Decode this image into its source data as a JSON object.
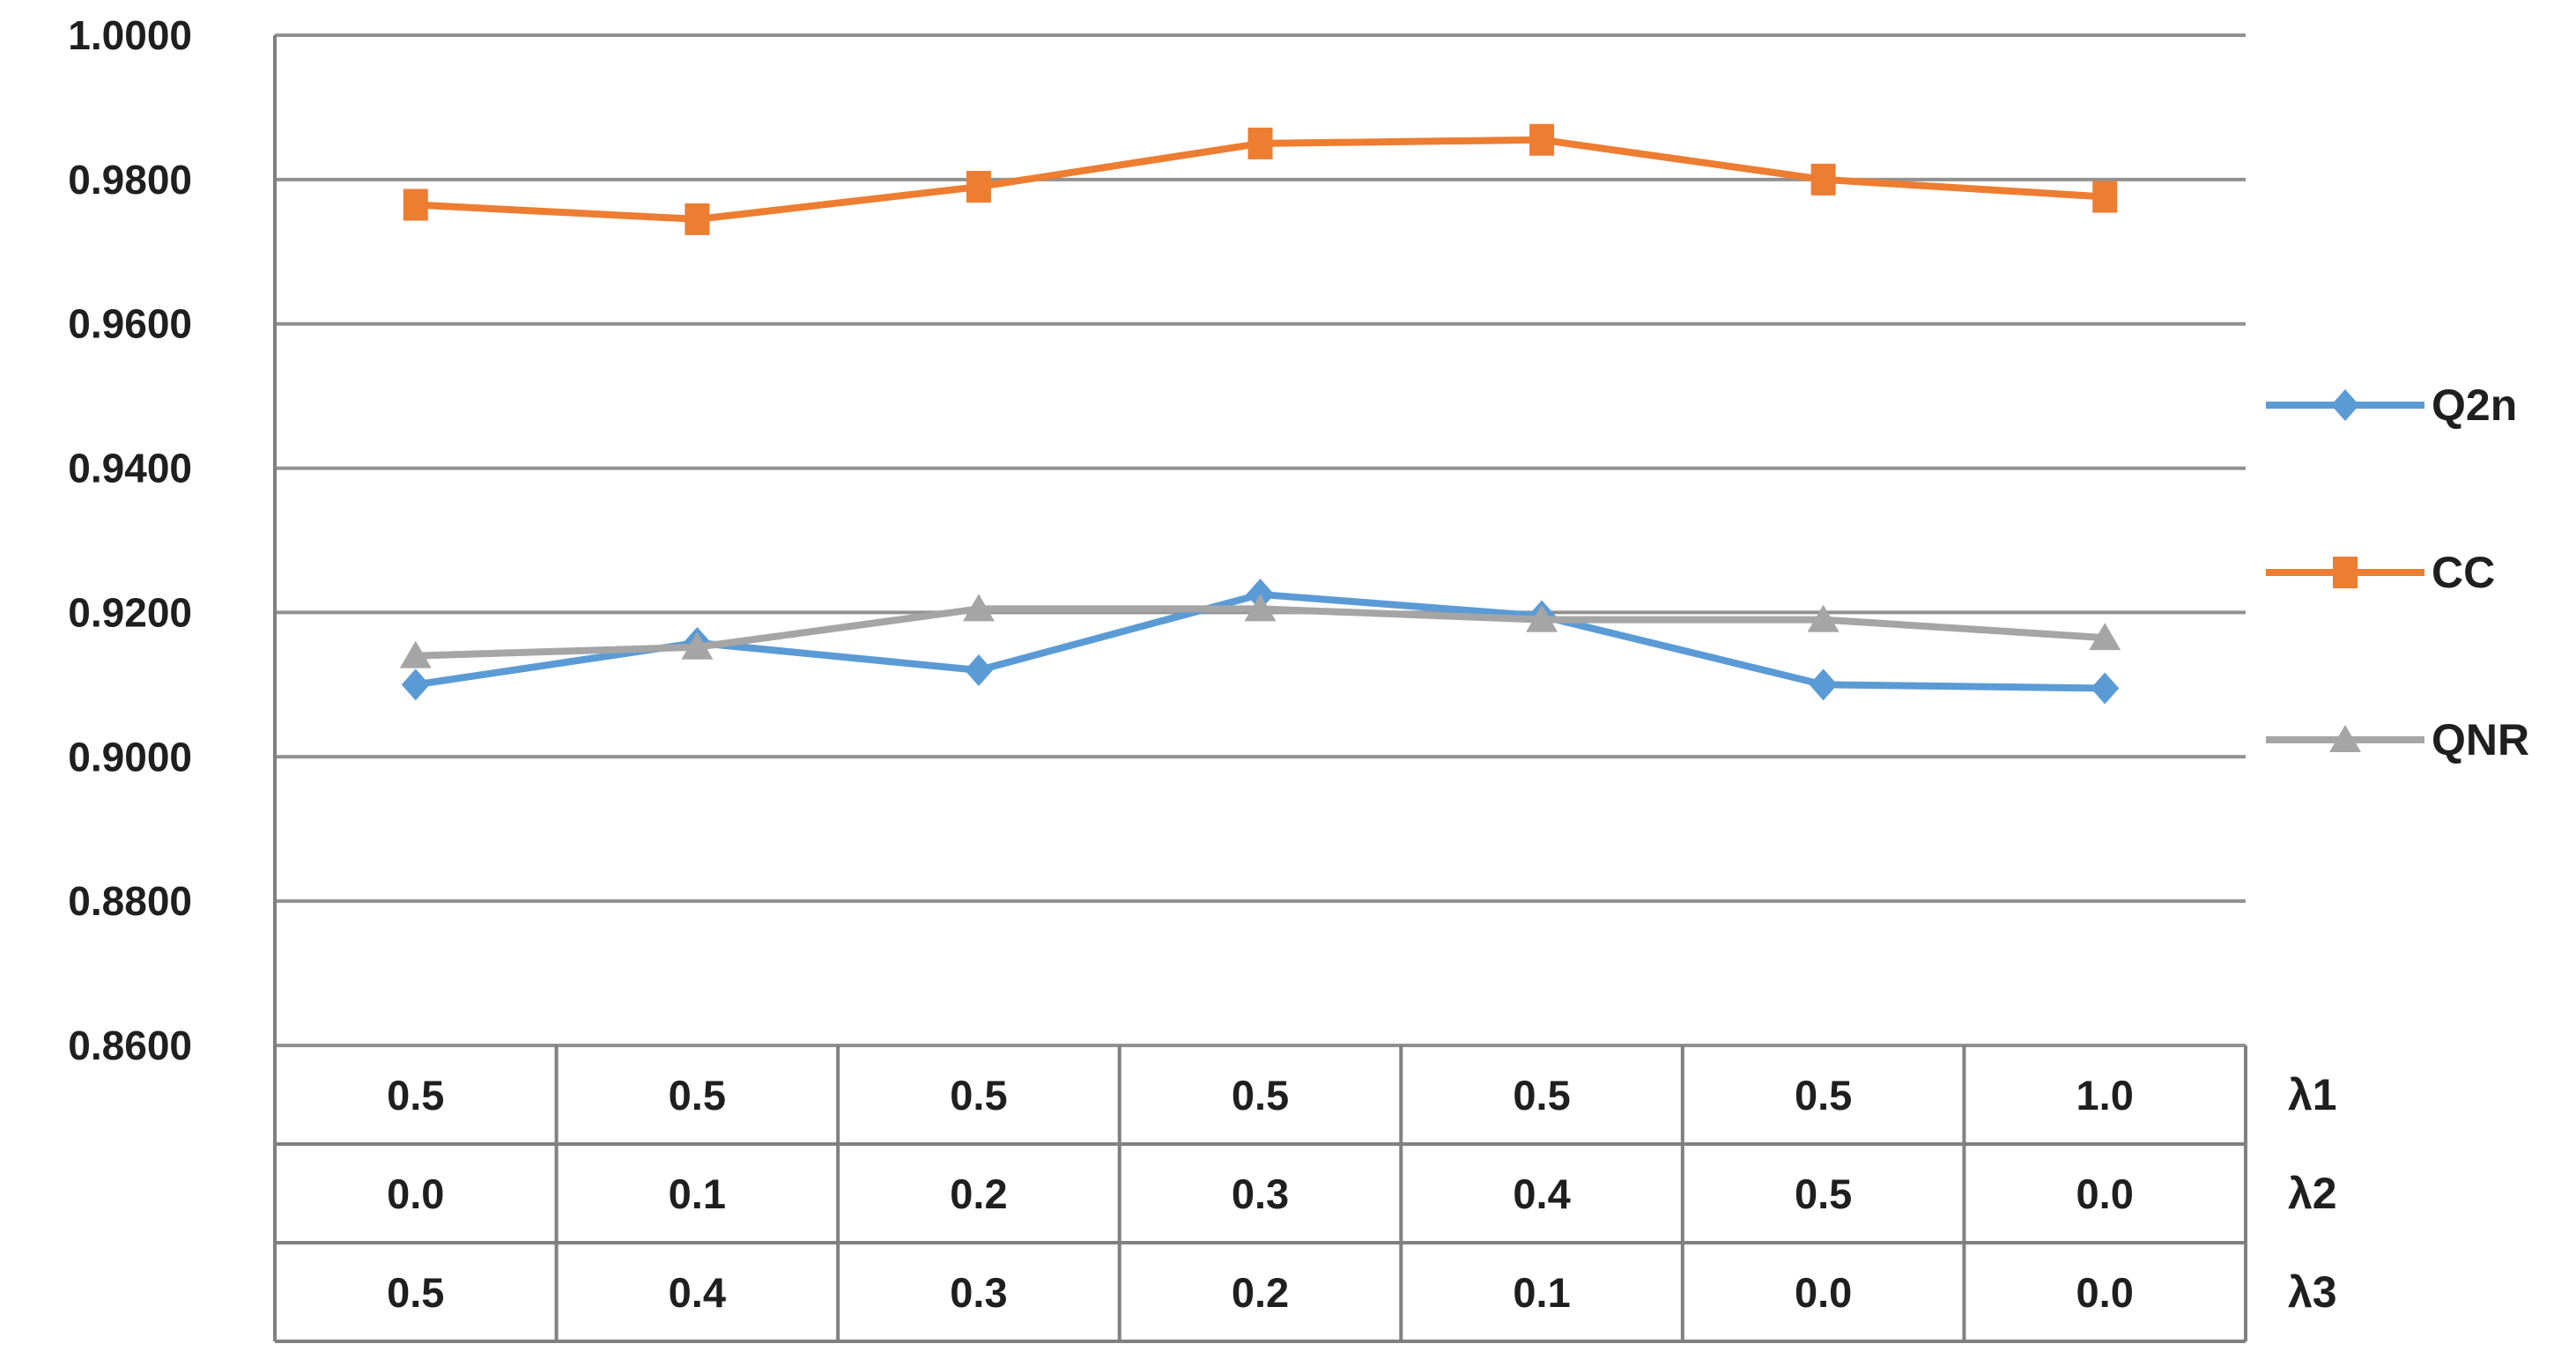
{
  "chart_data": {
    "type": "line",
    "title": "",
    "background": "#ffffff",
    "y_axis": {
      "min": 0.86,
      "max": 1.0,
      "step": 0.02,
      "tick_labels": [
        "1.0000",
        "0.9800",
        "0.9600",
        "0.9400",
        "0.9200",
        "0.9000",
        "0.8800",
        "0.8600"
      ],
      "grid": true
    },
    "x_axis": {
      "type": "category",
      "category_count": 7
    },
    "series": [
      {
        "name": "Q2n",
        "color": "#5B9BD5",
        "marker": "diamond",
        "values": [
          0.91,
          0.9158,
          0.912,
          0.9225,
          0.9195,
          0.91,
          0.9095
        ]
      },
      {
        "name": "CC",
        "color": "#ED7D31",
        "marker": "square",
        "values": [
          0.9765,
          0.9745,
          0.979,
          0.985,
          0.9855,
          0.98,
          0.9776
        ]
      },
      {
        "name": "QNR",
        "color": "#A5A5A5",
        "marker": "triangle",
        "values": [
          0.914,
          0.9152,
          0.9205,
          0.9205,
          0.919,
          0.919,
          0.9165
        ]
      }
    ],
    "data_table": {
      "rows": [
        {
          "label": "λ1",
          "values": [
            "0.5",
            "0.5",
            "0.5",
            "0.5",
            "0.5",
            "0.5",
            "1.0"
          ]
        },
        {
          "label": "λ2",
          "values": [
            "0.0",
            "0.1",
            "0.2",
            "0.3",
            "0.4",
            "0.5",
            "0.0"
          ]
        },
        {
          "label": "λ3",
          "values": [
            "0.5",
            "0.4",
            "0.3",
            "0.2",
            "0.1",
            "0.0",
            "0.0"
          ]
        }
      ]
    },
    "legend": {
      "position": "right",
      "entries": [
        "Q2n",
        "CC",
        "QNR"
      ]
    },
    "style_colors": {
      "gridline": "#919191",
      "border": "#808080",
      "text": "#1f1f1f"
    }
  }
}
